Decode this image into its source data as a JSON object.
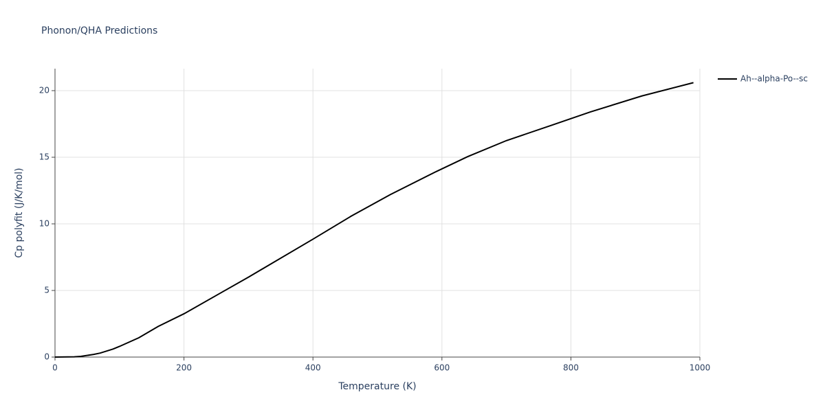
{
  "chart_data": {
    "type": "line",
    "title": "Phonon/QHA Predictions",
    "x_label": "Temperature (K)",
    "y_label": "Cp polyfit (J/K/mol)",
    "x": [
      0,
      30,
      40,
      60,
      70,
      90,
      100,
      130,
      160,
      200,
      260,
      300,
      400,
      460,
      520,
      590,
      640,
      700,
      770,
      830,
      910,
      990
    ],
    "series": [
      {
        "name": "Ah--alpha-Po--sc",
        "color": "#000000",
        "values": [
          0,
          0.02,
          0.05,
          0.2,
          0.3,
          0.6,
          0.8,
          1.45,
          2.3,
          3.25,
          4.9,
          6.0,
          8.85,
          10.6,
          12.2,
          13.9,
          15.05,
          16.25,
          17.4,
          18.4,
          19.6,
          20.6
        ]
      }
    ],
    "xlim": [
      0,
      1000
    ],
    "xticks": [
      0,
      200,
      400,
      600,
      800,
      1000
    ],
    "ylim": [
      0,
      21.65
    ],
    "yticks": [
      0,
      5,
      10,
      15,
      20
    ],
    "grid": true,
    "legend": "right"
  }
}
